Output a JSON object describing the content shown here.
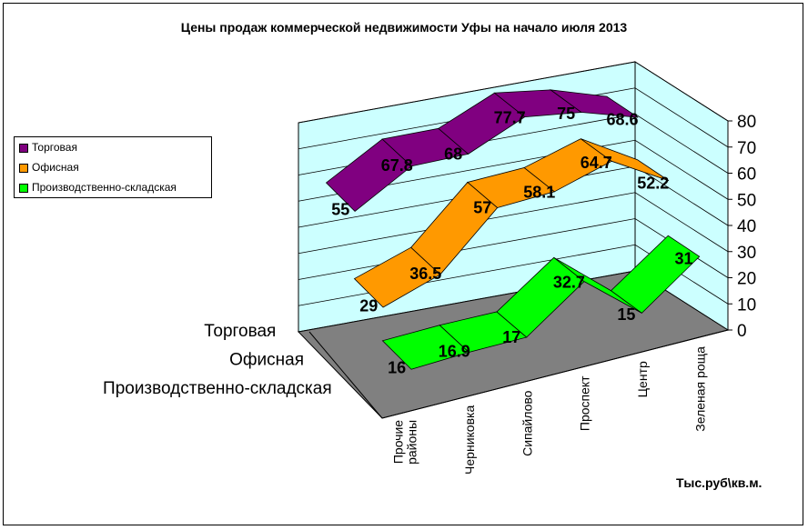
{
  "chart_data": {
    "type": "line",
    "style": "3d-ribbon",
    "title": "Цены продаж коммерческой недвижимости Уфы на начало июля 2013",
    "units_label": "Тыс.руб\\кв.м.",
    "categories": [
      [
        "Прочие",
        "районы"
      ],
      [
        "Черниковка"
      ],
      [
        "Сипайлово"
      ],
      [
        "Проспект"
      ],
      [
        "Центр"
      ],
      [
        "Зеленая роща"
      ]
    ],
    "y_ticks": [
      "0",
      "10",
      "20",
      "30",
      "40",
      "50",
      "60",
      "70",
      "80"
    ],
    "ylim": [
      0,
      80
    ],
    "series": [
      {
        "name": "Торговая",
        "color": "#800080",
        "values": [
          55,
          67.8,
          68,
          77.7,
          75,
          68.6
        ],
        "labels": [
          "55",
          "67.8",
          "68",
          "77.7",
          "75",
          "68.6"
        ]
      },
      {
        "name": "Офисная",
        "color": "#ff9900",
        "values": [
          29,
          36.5,
          57,
          58.1,
          64.7,
          52.2
        ],
        "labels": [
          "29",
          "36.5",
          "57",
          "58.1",
          "64.7",
          "52.2"
        ]
      },
      {
        "name": "Производственно-складская",
        "color": "#00ff00",
        "values": [
          16,
          16.9,
          17,
          32.7,
          15,
          31
        ],
        "labels": [
          "16",
          "16.9",
          "17",
          "32.7",
          "15",
          "31"
        ]
      }
    ],
    "legend_position": "left"
  }
}
